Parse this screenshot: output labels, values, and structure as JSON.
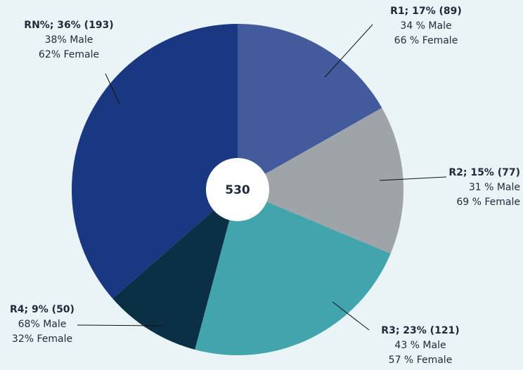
{
  "chart_data": {
    "type": "pie",
    "labels": [
      "R1; 17%  (89)",
      "R2; 15%  (77)",
      "R3; 23%  (121)",
      "R4; 9% (50)",
      "RN%; 36% (193)"
    ],
    "values": [
      89,
      77,
      121,
      50,
      193
    ],
    "details": [
      [
        "34 % Male",
        "66 % Female"
      ],
      [
        "31 % Male",
        "69 % Female"
      ],
      [
        "43 % Male",
        "57 % Female"
      ],
      [
        "68% Male",
        "32% Female"
      ],
      [
        "38% Male",
        "62% Female"
      ]
    ],
    "colors": [
      "#435b9c",
      "#9ea4a8",
      "#42a5ad",
      "#0b2f45",
      "#1a3782"
    ],
    "total": 530
  }
}
